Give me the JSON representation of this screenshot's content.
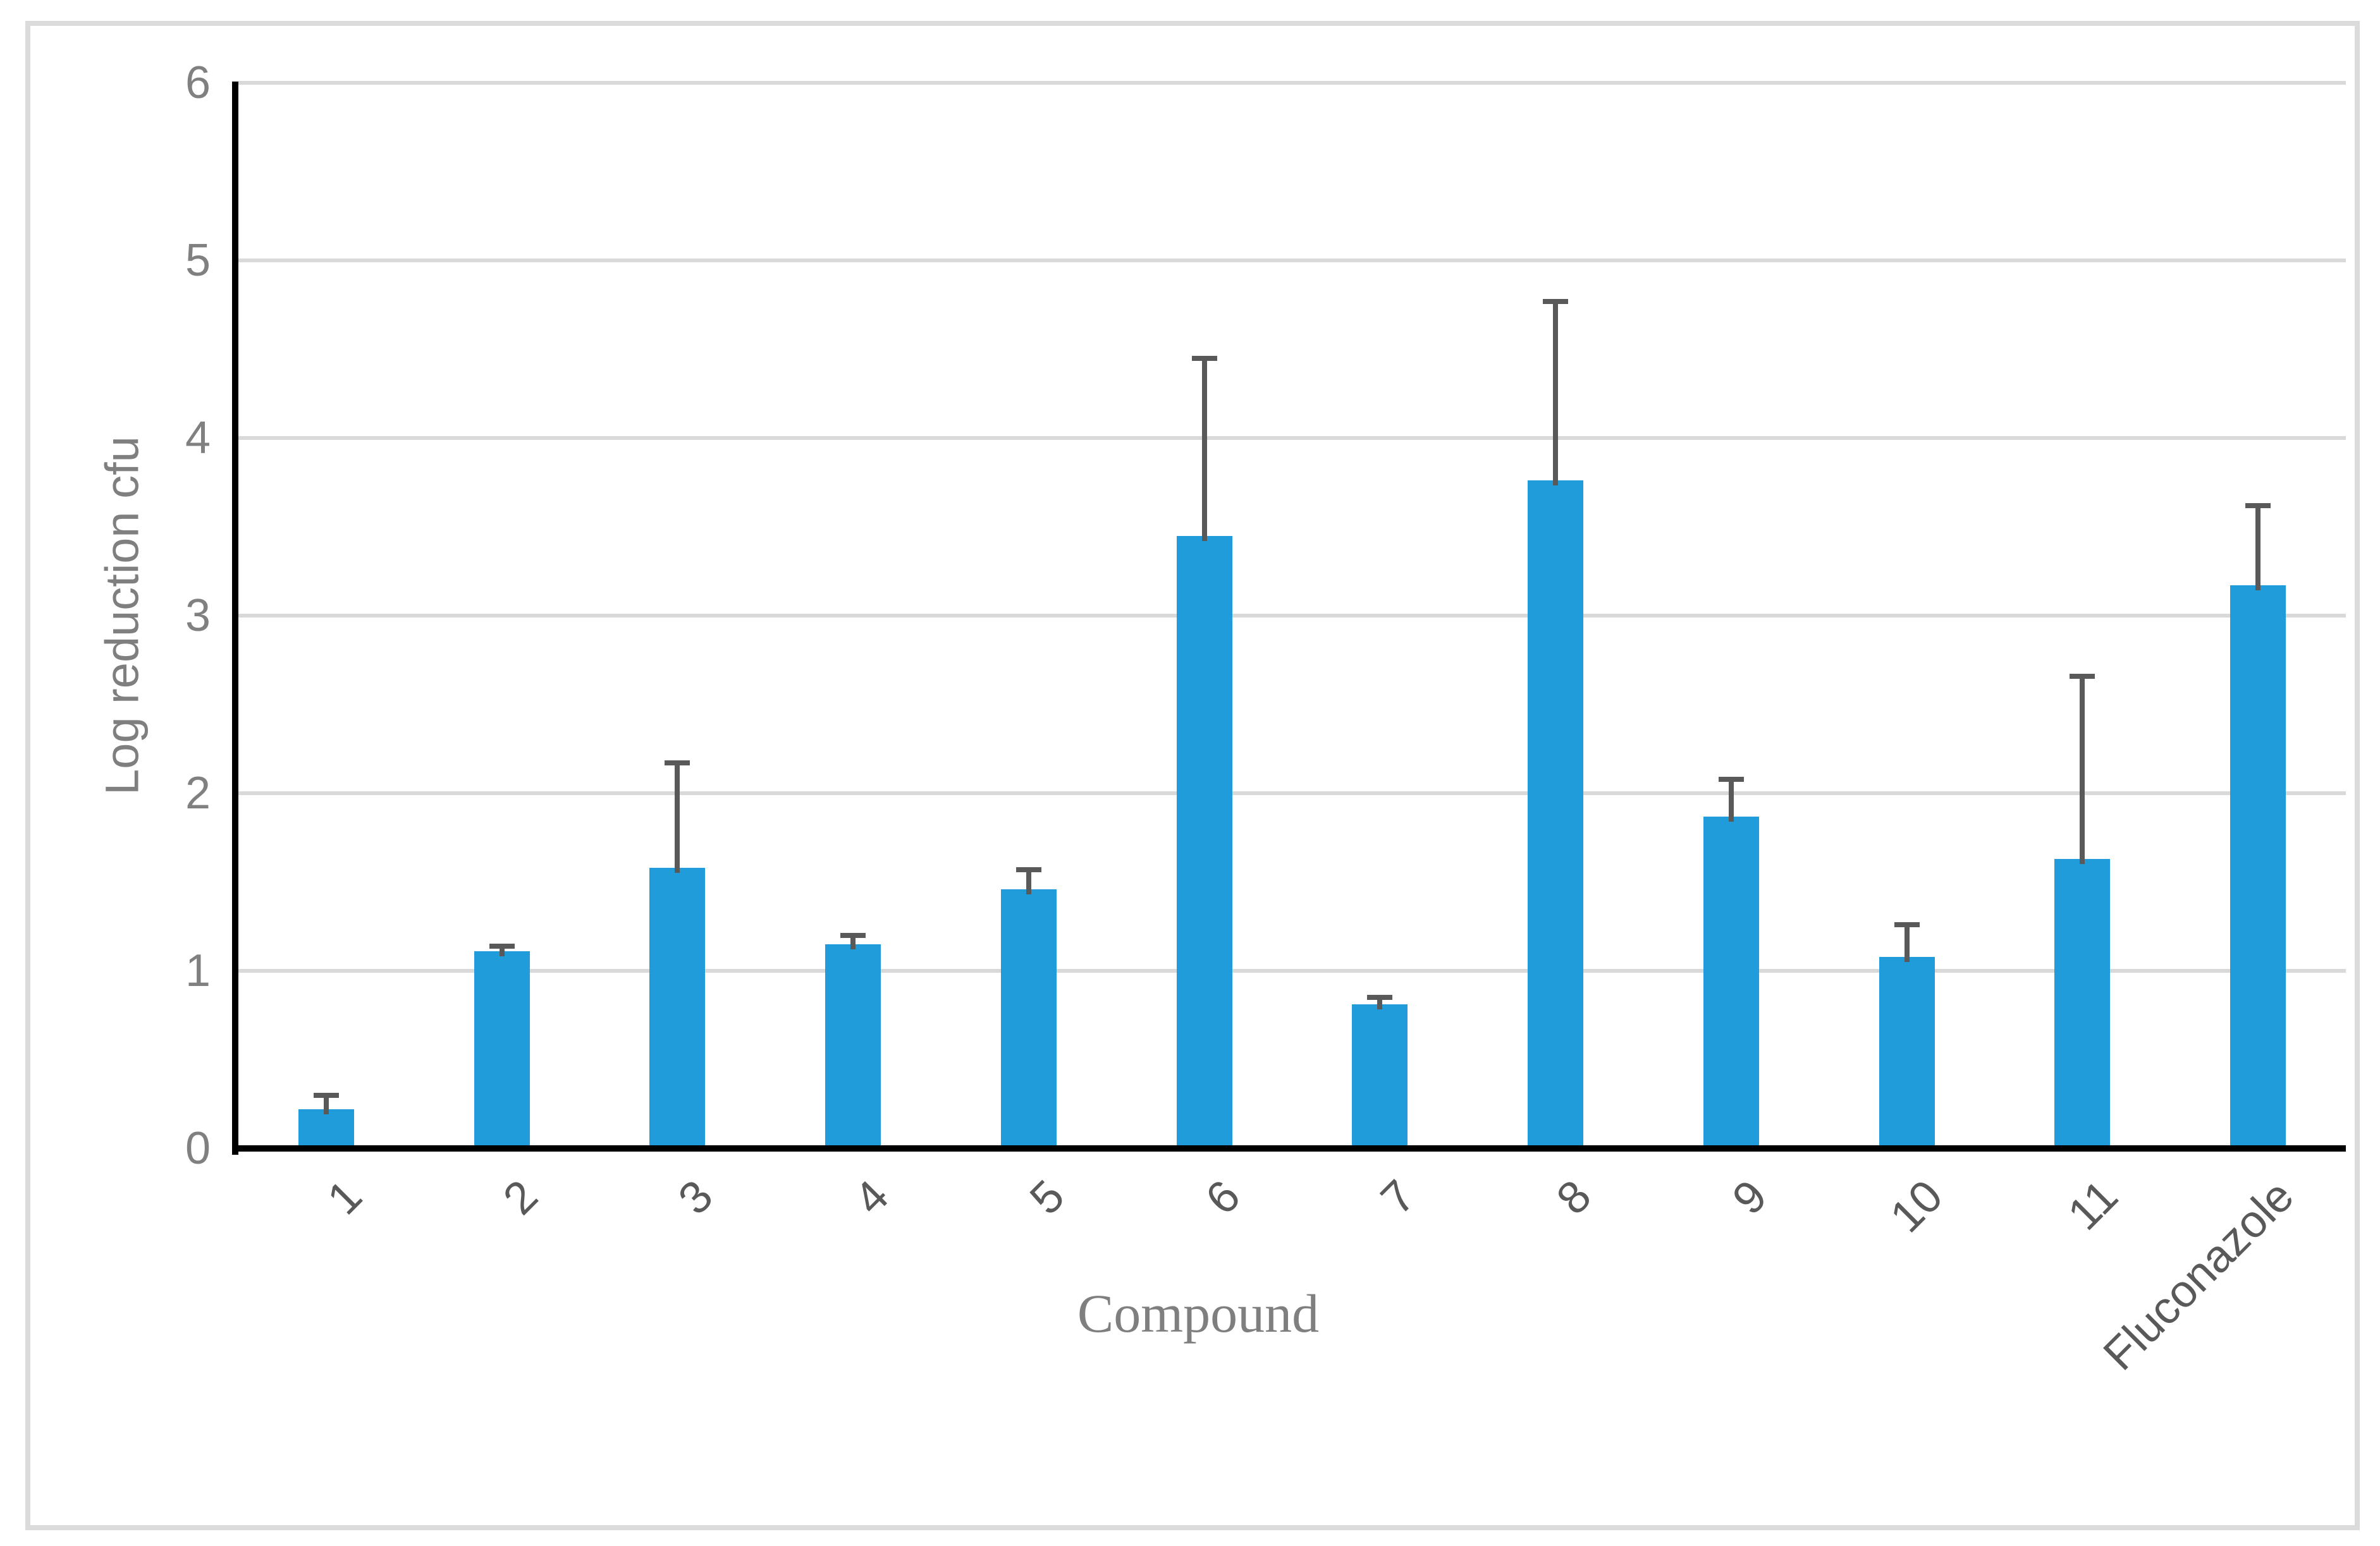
{
  "figure": {
    "background_color": "#FFFFFF",
    "border_color": "#DBDBDB"
  },
  "chart_data": {
    "type": "bar",
    "title": "",
    "xlabel": "Compound",
    "ylabel": "Log reduction cfu",
    "categories": [
      "1",
      "2",
      "3",
      "4",
      "5",
      "6",
      "7",
      "8",
      "9",
      "10",
      "11",
      "Fluconazole"
    ],
    "values": [
      0.22,
      1.11,
      1.58,
      1.15,
      1.46,
      3.45,
      0.81,
      3.76,
      1.87,
      1.08,
      1.63,
      3.17
    ],
    "error_plus": [
      0.08,
      0.03,
      0.59,
      0.05,
      0.11,
      1.0,
      0.04,
      1.01,
      0.21,
      0.18,
      1.03,
      0.45
    ],
    "ylim": [
      0,
      6
    ],
    "yticks": [
      0,
      1,
      2,
      3,
      4,
      5,
      6
    ],
    "grid": "horizontal gridlines at integer ticks",
    "legend": "none",
    "bar_color": "#1F9CD9",
    "error_bar_color": "#595959",
    "gridline_color": "#D9D9D9",
    "axis_line_color": "#000000",
    "y_tick_label_color": "#808080",
    "x_tick_label_color": "#595959",
    "axis_title_color": "#7F7F7F"
  }
}
